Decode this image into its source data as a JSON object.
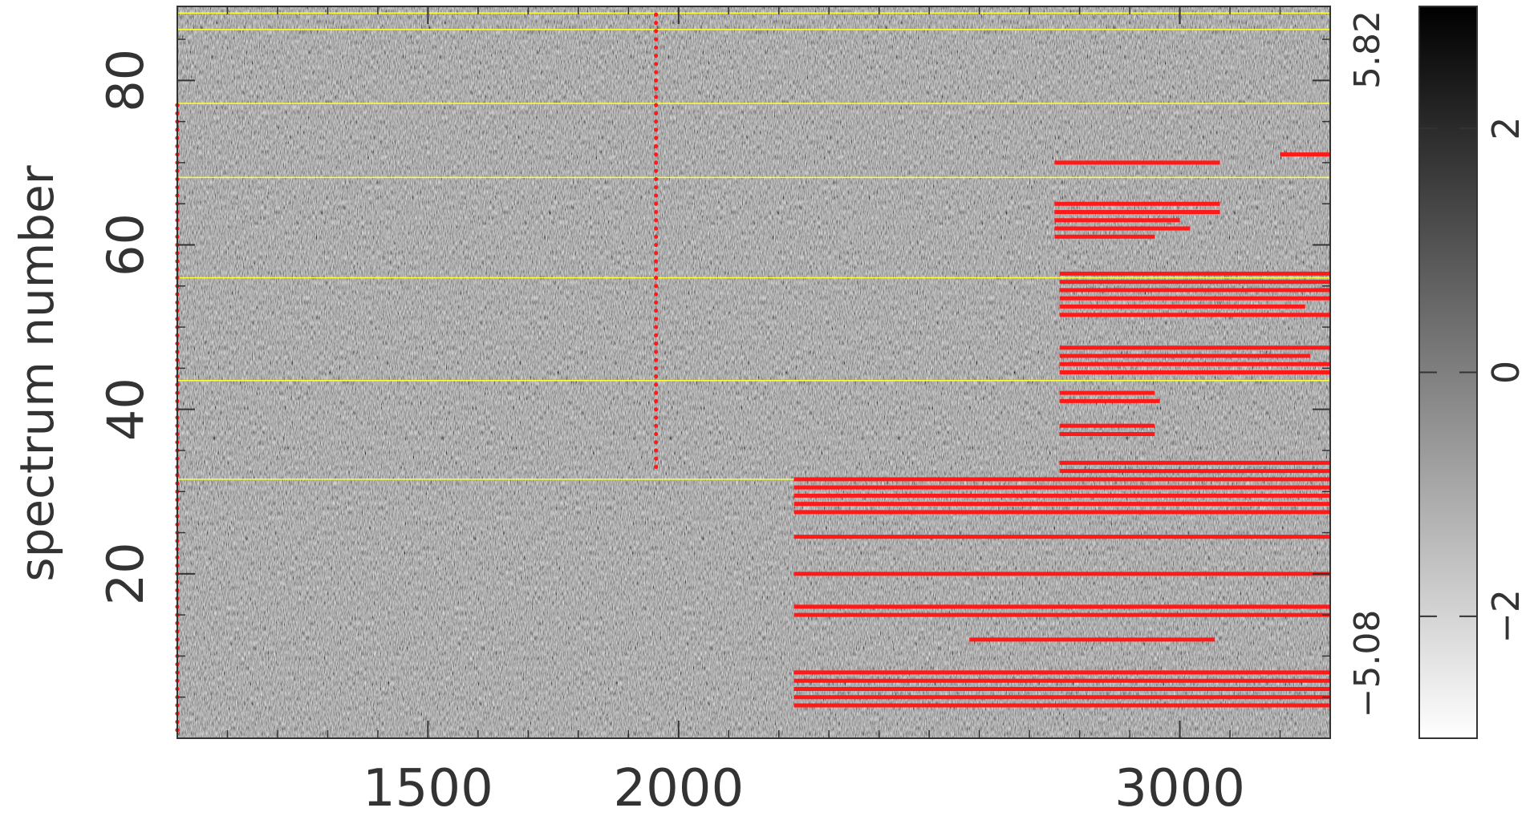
{
  "chart_data": {
    "type": "heatmap",
    "title": "",
    "xlabel": "",
    "ylabel": "spectrum number",
    "xlim": [
      1000,
      3300
    ],
    "ylim": [
      0,
      89
    ],
    "x_ticks": [
      {
        "value": 1500,
        "label": "1500"
      },
      {
        "value": 2000,
        "label": "2000"
      },
      {
        "value": 3000,
        "label": "3000"
      }
    ],
    "y_ticks": [
      {
        "value": 20,
        "label": "20"
      },
      {
        "value": 40,
        "label": "40"
      },
      {
        "value": 60,
        "label": "60"
      },
      {
        "value": 80,
        "label": "80"
      }
    ],
    "range_labels": {
      "max": "5.82",
      "min": "−5.08"
    },
    "colorbar": {
      "range": [
        -3,
        3
      ],
      "ticks": [
        {
          "value": -2,
          "label": "−2"
        },
        {
          "value": 0,
          "label": "0"
        },
        {
          "value": 2,
          "label": "2"
        }
      ],
      "colormap": "greyscale, white = low, black = high"
    },
    "colors": {
      "background": "#808080",
      "mask": "#ff1a1a",
      "separator": "#ffff33",
      "axis": "#333333"
    },
    "separators_y": [
      31.5,
      43.5,
      56,
      68.2,
      77.2,
      86.2,
      88.2
    ],
    "mask_segments": [
      {
        "y": 4,
        "x0": 2230,
        "x1": 3300
      },
      {
        "y": 5,
        "x0": 2230,
        "x1": 3300
      },
      {
        "y": 6,
        "x0": 2230,
        "x1": 3300
      },
      {
        "y": 7,
        "x0": 2230,
        "x1": 3300
      },
      {
        "y": 8,
        "x0": 2230,
        "x1": 3300
      },
      {
        "y": 12,
        "x0": 2580,
        "x1": 3070
      },
      {
        "y": 15,
        "x0": 2230,
        "x1": 3300
      },
      {
        "y": 16,
        "x0": 2230,
        "x1": 3300
      },
      {
        "y": 20,
        "x0": 2230,
        "x1": 3300
      },
      {
        "y": 24.5,
        "x0": 2230,
        "x1": 3300
      },
      {
        "y": 27.5,
        "x0": 2230,
        "x1": 3300
      },
      {
        "y": 28.5,
        "x0": 2230,
        "x1": 3300
      },
      {
        "y": 29.5,
        "x0": 2230,
        "x1": 3300
      },
      {
        "y": 30.5,
        "x0": 2230,
        "x1": 3300
      },
      {
        "y": 31.5,
        "x0": 2230,
        "x1": 3300
      },
      {
        "y": 32.5,
        "x0": 2760,
        "x1": 3300
      },
      {
        "y": 33.5,
        "x0": 2760,
        "x1": 3300
      },
      {
        "y": 37,
        "x0": 2760,
        "x1": 2950
      },
      {
        "y": 38,
        "x0": 2760,
        "x1": 2950
      },
      {
        "y": 41,
        "x0": 2760,
        "x1": 2960
      },
      {
        "y": 42,
        "x0": 2760,
        "x1": 2950
      },
      {
        "y": 44.5,
        "x0": 2760,
        "x1": 3300
      },
      {
        "y": 45.5,
        "x0": 2760,
        "x1": 3300
      },
      {
        "y": 46.5,
        "x0": 2760,
        "x1": 3260
      },
      {
        "y": 47.5,
        "x0": 2760,
        "x1": 3300
      },
      {
        "y": 51.5,
        "x0": 2760,
        "x1": 3300
      },
      {
        "y": 52.5,
        "x0": 2760,
        "x1": 3250
      },
      {
        "y": 53.5,
        "x0": 2760,
        "x1": 3300
      },
      {
        "y": 54.5,
        "x0": 2760,
        "x1": 3300
      },
      {
        "y": 55.5,
        "x0": 2760,
        "x1": 3300
      },
      {
        "y": 56.5,
        "x0": 2760,
        "x1": 3300
      },
      {
        "y": 61,
        "x0": 2750,
        "x1": 2950
      },
      {
        "y": 62,
        "x0": 2750,
        "x1": 3020
      },
      {
        "y": 63,
        "x0": 2750,
        "x1": 3000
      },
      {
        "y": 64,
        "x0": 2750,
        "x1": 3080
      },
      {
        "y": 65,
        "x0": 2750,
        "x1": 3080
      },
      {
        "y": 70,
        "x0": 2750,
        "x1": 3080
      },
      {
        "y": 71,
        "x0": 3200,
        "x1": 3300
      }
    ],
    "mask_dot_columns": [
      {
        "x": 1000,
        "y0": 1,
        "y1": 77
      },
      {
        "x": 1955,
        "y0": 33,
        "y1": 88
      }
    ]
  }
}
